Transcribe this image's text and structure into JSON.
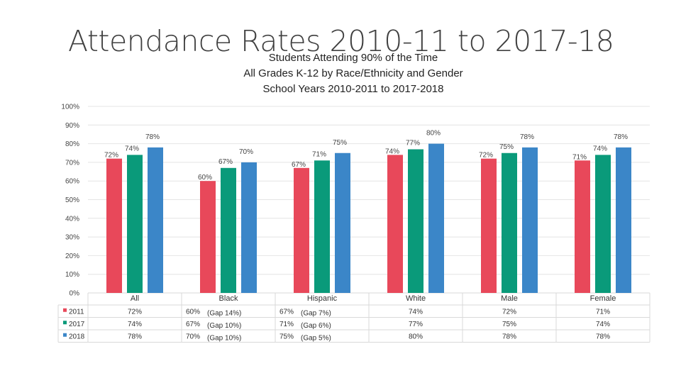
{
  "header": {
    "title": "Attendance Rates 2010-11 to 2017-18",
    "subtitle_lines": [
      "Students Attending 90% of the Time",
      "All Grades K-12 by Race/Ethnicity and Gender",
      "School Years 2010-2011 to 2017-2018"
    ]
  },
  "chart_data": {
    "type": "bar",
    "title": "Attendance Rates 2010-11 to 2017-18",
    "subtitle": "Students Attending 90% of the Time / All Grades K-12 by Race/Ethnicity and Gender / School Years 2010-2011 to 2017-2018",
    "categories": [
      "All",
      "Black",
      "Hispanic",
      "White",
      "Male",
      "Female"
    ],
    "series": [
      {
        "name": "2011",
        "color": "#e8485a",
        "values": [
          72,
          60,
          67,
          74,
          72,
          71
        ],
        "labels": [
          "72%",
          "60%",
          "67%",
          "74%",
          "72%",
          "71%"
        ]
      },
      {
        "name": "2017",
        "color": "#0a9a7a",
        "values": [
          74,
          67,
          71,
          77,
          75,
          74
        ],
        "labels": [
          "74%",
          "67%",
          "71%",
          "77%",
          "75%",
          "74%"
        ]
      },
      {
        "name": "2018",
        "color": "#3b86c8",
        "values": [
          78,
          70,
          75,
          80,
          78,
          78
        ],
        "labels": [
          "78%",
          "70%",
          "75%",
          "80%",
          "78%",
          "78%"
        ]
      }
    ],
    "gap_notes": [
      [
        "",
        "(Gap 14%)",
        "(Gap 7%)",
        "",
        "",
        ""
      ],
      [
        "",
        "(Gap 10%)",
        "(Gap 6%)",
        "",
        "",
        ""
      ],
      [
        "",
        "(Gap 10%)",
        "(Gap 5%)",
        "",
        "",
        ""
      ]
    ],
    "ylim": [
      0,
      100
    ],
    "yticks": [
      "0%",
      "10%",
      "20%",
      "30%",
      "40%",
      "50%",
      "60%",
      "70%",
      "80%",
      "90%",
      "100%"
    ],
    "grid": true,
    "legend": "data table below chart",
    "xlabel": "",
    "ylabel": ""
  }
}
